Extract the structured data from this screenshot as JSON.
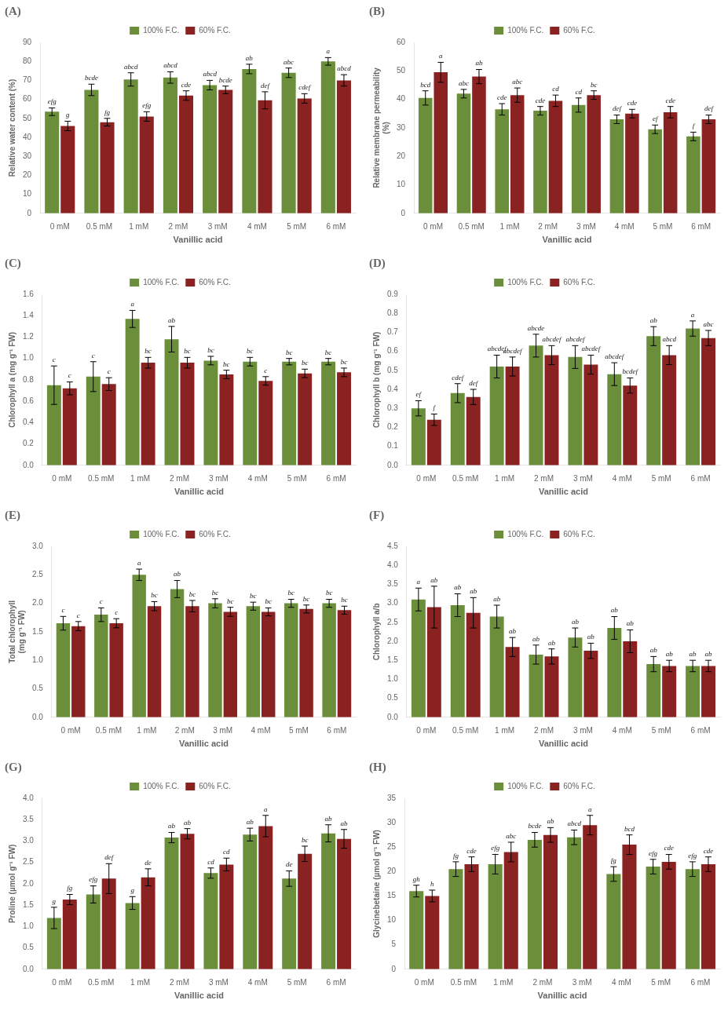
{
  "chart_data": [
    {
      "type": "bar",
      "title": "(A)",
      "xlabel": "Vanillic acid",
      "ylabel": "Relative water content (%)",
      "categories": [
        "0 mM",
        "0.5 mM",
        "1 mM",
        "2 mM",
        "3 mM",
        "4 mM",
        "5 mM",
        "6 mM"
      ],
      "ylim": [
        0,
        90
      ],
      "yticks": [
        0,
        10,
        20,
        30,
        40,
        50,
        60,
        70,
        80,
        90
      ],
      "grid": false,
      "legend": "top",
      "series": [
        {
          "name": "100% F.C.",
          "color": "#6b8e3a",
          "values": [
            53.5,
            65.0,
            70.5,
            71.5,
            67.5,
            76.0,
            74.0,
            80.0
          ],
          "errors": [
            2.0,
            3.0,
            3.5,
            3.0,
            2.5,
            2.5,
            2.5,
            2.0
          ],
          "annotations": [
            "efg",
            "bcde",
            "abcd",
            "abcd",
            "abcd",
            "ab",
            "abc",
            "a"
          ]
        },
        {
          "name": "60% F.C.",
          "color": "#8b2222",
          "values": [
            46.0,
            48.0,
            51.0,
            62.0,
            65.0,
            59.5,
            60.5,
            70.0
          ],
          "errors": [
            2.5,
            2.0,
            2.5,
            2.5,
            2.0,
            4.5,
            2.5,
            3.0
          ],
          "annotations": [
            "g",
            "fg",
            "efg",
            "cde",
            "bcde",
            "def",
            "cdef",
            "abcd"
          ]
        }
      ]
    },
    {
      "type": "bar",
      "title": "(B)",
      "xlabel": "Vanillic acid",
      "ylabel": "Relative membrane permeability\n(%)",
      "categories": [
        "0 mM",
        "0.5 mM",
        "1 mM",
        "2 mM",
        "3 mM",
        "4 mM",
        "5 mM",
        "6 mM"
      ],
      "ylim": [
        0,
        60
      ],
      "yticks": [
        0,
        10,
        20,
        30,
        40,
        50,
        60
      ],
      "grid": false,
      "legend": "top",
      "series": [
        {
          "name": "100% F.C.",
          "color": "#6b8e3a",
          "values": [
            40.5,
            42.0,
            36.5,
            36.0,
            38.0,
            33.0,
            29.5,
            27.0
          ],
          "errors": [
            2.5,
            1.5,
            2.0,
            1.5,
            2.5,
            1.5,
            1.5,
            1.5
          ],
          "annotations": [
            "bcd",
            "abc",
            "cde",
            "cde",
            "cd",
            "def",
            "ef",
            "f"
          ]
        },
        {
          "name": "60% F.C.",
          "color": "#8b2222",
          "values": [
            49.5,
            48.0,
            41.5,
            39.5,
            41.5,
            35.0,
            35.5,
            33.0
          ],
          "errors": [
            3.5,
            2.5,
            2.5,
            2.0,
            1.5,
            1.5,
            2.0,
            1.5
          ],
          "annotations": [
            "a",
            "ab",
            "abc",
            "cd",
            "bc",
            "cde",
            "cde",
            "def"
          ]
        }
      ]
    },
    {
      "type": "bar",
      "title": "(C)",
      "xlabel": "Vanillic acid",
      "ylabel": "Chlorophyll a (mg g⁻¹ FW)",
      "categories": [
        "0 mM",
        "0.5 mM",
        "1 mM",
        "2 mM",
        "3 mM",
        "4 mM",
        "5 mM",
        "6 mM"
      ],
      "ylim": [
        0,
        1.6
      ],
      "yticks": [
        {
          "value": 0,
          "label": "0.0"
        },
        0.2,
        0.4,
        0.6,
        0.8,
        {
          "value": 1.0,
          "label": "1.0"
        },
        1.2,
        1.4,
        1.6
      ],
      "grid": false,
      "legend": "top",
      "series": [
        {
          "name": "100% F.C.",
          "color": "#6b8e3a",
          "values": [
            0.75,
            0.83,
            1.37,
            1.18,
            0.98,
            0.97,
            0.97,
            0.97
          ],
          "errors": [
            0.18,
            0.14,
            0.08,
            0.12,
            0.04,
            0.04,
            0.03,
            0.03
          ],
          "annotations": [
            "c",
            "c",
            "a",
            "ab",
            "bc",
            "bc",
            "bc",
            "bc"
          ]
        },
        {
          "name": "60% F.C.",
          "color": "#8b2222",
          "values": [
            0.72,
            0.76,
            0.96,
            0.96,
            0.85,
            0.79,
            0.86,
            0.87
          ],
          "errors": [
            0.06,
            0.06,
            0.05,
            0.05,
            0.04,
            0.04,
            0.04,
            0.04
          ],
          "annotations": [
            "c",
            "c",
            "bc",
            "bc",
            "bc",
            "c",
            "bc",
            "bc"
          ]
        }
      ]
    },
    {
      "type": "bar",
      "title": "(D)",
      "xlabel": "Vanillic acid",
      "ylabel": "Chlorophyll b (mg g⁻¹ FW)",
      "categories": [
        "0 mM",
        "0.5 mM",
        "1 mM",
        "2 mM",
        "3 mM",
        "4 mM",
        "5 mM",
        "6 mM"
      ],
      "ylim": [
        0,
        0.9
      ],
      "yticks": [
        {
          "value": 0,
          "label": "0.0"
        },
        0.1,
        0.2,
        0.3,
        0.4,
        0.5,
        0.6,
        0.7,
        0.8,
        0.9
      ],
      "grid": false,
      "legend": "top",
      "series": [
        {
          "name": "100% F.C.",
          "color": "#6b8e3a",
          "values": [
            0.3,
            0.38,
            0.52,
            0.63,
            0.57,
            0.48,
            0.68,
            0.72
          ],
          "errors": [
            0.04,
            0.05,
            0.06,
            0.06,
            0.06,
            0.06,
            0.05,
            0.04
          ],
          "annotations": [
            "ef",
            "cdef",
            "abcdef",
            "abcde",
            "abcdef",
            "abcdef",
            "ab",
            "a"
          ]
        },
        {
          "name": "60% F.C.",
          "color": "#8b2222",
          "values": [
            0.24,
            0.36,
            0.52,
            0.58,
            0.53,
            0.42,
            0.58,
            0.67
          ],
          "errors": [
            0.03,
            0.04,
            0.05,
            0.05,
            0.05,
            0.04,
            0.05,
            0.04
          ],
          "annotations": [
            "f",
            "def",
            "abcdef",
            "abcdef",
            "abcdef",
            "bcdef",
            "abcd",
            "abc"
          ]
        }
      ]
    },
    {
      "type": "bar",
      "title": "(E)",
      "xlabel": "Vanillic acid",
      "ylabel": "Total chlorophyll\n(mg g⁻¹ FW)",
      "categories": [
        "0 mM",
        "0.5 mM",
        "1 mM",
        "2 mM",
        "3 mM",
        "4 mM",
        "5 mM",
        "6 mM"
      ],
      "ylim": [
        0,
        3
      ],
      "yticks": [
        {
          "value": 0,
          "label": "0.0"
        },
        0.5,
        {
          "value": 1.0,
          "label": "1.0"
        },
        1.5,
        {
          "value": 2.0,
          "label": "2.0"
        },
        2.5,
        {
          "value": 3.0,
          "label": "3.0"
        }
      ],
      "grid": false,
      "legend": "top",
      "series": [
        {
          "name": "100% F.C.",
          "color": "#6b8e3a",
          "values": [
            1.65,
            1.8,
            2.5,
            2.25,
            2.0,
            1.95,
            2.0,
            2.0
          ],
          "errors": [
            0.12,
            0.12,
            0.1,
            0.15,
            0.08,
            0.07,
            0.07,
            0.07
          ],
          "annotations": [
            "c",
            "c",
            "a",
            "ab",
            "bc",
            "bc",
            "bc",
            "bc"
          ]
        },
        {
          "name": "60% F.C.",
          "color": "#8b2222",
          "values": [
            1.6,
            1.65,
            1.95,
            1.95,
            1.85,
            1.85,
            1.9,
            1.88
          ],
          "errors": [
            0.08,
            0.08,
            0.08,
            0.1,
            0.08,
            0.07,
            0.07,
            0.07
          ],
          "annotations": [
            "c",
            "c",
            "bc",
            "bc",
            "bc",
            "bc",
            "bc",
            "bc"
          ]
        }
      ]
    },
    {
      "type": "bar",
      "title": "(F)",
      "xlabel": "Vanillic acid",
      "ylabel": "Chlorophyll a/b",
      "categories": [
        "0 mM",
        "0.5 mM",
        "1 mM",
        "2 mM",
        "3 mM",
        "4 mM",
        "5 mM",
        "6 mM"
      ],
      "ylim": [
        0,
        4.5
      ],
      "yticks": [
        {
          "value": 0,
          "label": "0.0"
        },
        0.5,
        {
          "value": 1.0,
          "label": "1.0"
        },
        1.5,
        {
          "value": 2.0,
          "label": "2.0"
        },
        2.5,
        {
          "value": 3.0,
          "label": "3.0"
        },
        3.5,
        {
          "value": 4.0,
          "label": "4.0"
        },
        4.5
      ],
      "grid": false,
      "legend": "top",
      "series": [
        {
          "name": "100% F.C.",
          "color": "#6b8e3a",
          "values": [
            3.1,
            2.95,
            2.65,
            1.65,
            2.1,
            2.35,
            1.4,
            1.35
          ],
          "errors": [
            0.3,
            0.3,
            0.3,
            0.25,
            0.25,
            0.3,
            0.2,
            0.15
          ],
          "annotations": [
            "a",
            "ab",
            "ab",
            "ab",
            "ab",
            "ab",
            "ab",
            "ab"
          ]
        },
        {
          "name": "60% F.C.",
          "color": "#8b2222",
          "values": [
            2.9,
            2.75,
            1.85,
            1.6,
            1.75,
            2.0,
            1.35,
            1.35
          ],
          "errors": [
            0.55,
            0.4,
            0.25,
            0.2,
            0.2,
            0.3,
            0.15,
            0.15
          ],
          "annotations": [
            "ab",
            "ab",
            "ab",
            "ab",
            "ab",
            "ab",
            "ab",
            "ab"
          ]
        }
      ]
    },
    {
      "type": "bar",
      "title": "(G)",
      "xlabel": "Vanillic acid",
      "ylabel": "Proline (µmol g⁻¹ FW)",
      "categories": [
        "0 mM",
        "0.5 mM",
        "1 mM",
        "2 mM",
        "3 mM",
        "4 mM",
        "5 mM",
        "6 mM"
      ],
      "ylim": [
        0,
        4
      ],
      "yticks": [
        {
          "value": 0,
          "label": "0.0"
        },
        0.5,
        {
          "value": 1.0,
          "label": "1.0"
        },
        1.5,
        {
          "value": 2.0,
          "label": "2.0"
        },
        2.5,
        {
          "value": 3.0,
          "label": "3.0"
        },
        3.5,
        {
          "value": 4.0,
          "label": "4.0"
        }
      ],
      "grid": false,
      "legend": "top",
      "series": [
        {
          "name": "100% F.C.",
          "color": "#6b8e3a",
          "values": [
            1.2,
            1.75,
            1.55,
            3.08,
            2.25,
            3.15,
            2.12,
            3.18
          ],
          "errors": [
            0.25,
            0.2,
            0.15,
            0.12,
            0.12,
            0.15,
            0.18,
            0.2
          ],
          "annotations": [
            "g",
            "efg",
            "g",
            "ab",
            "cd",
            "ab",
            "de",
            "ab"
          ]
        },
        {
          "name": "60% F.C.",
          "color": "#8b2222",
          "values": [
            1.63,
            2.12,
            2.15,
            3.17,
            2.45,
            3.35,
            2.7,
            3.05
          ],
          "errors": [
            0.12,
            0.35,
            0.2,
            0.12,
            0.15,
            0.25,
            0.18,
            0.22
          ],
          "annotations": [
            "fg",
            "def",
            "de",
            "ab",
            "cd",
            "a",
            "bc",
            "ab"
          ]
        }
      ]
    },
    {
      "type": "bar",
      "title": "(H)",
      "xlabel": "Vanillic acid",
      "ylabel": "Glycinebetaine (µmol g⁻¹ FW)",
      "categories": [
        "0 mM",
        "0.5 mM",
        "1 mM",
        "2 mM",
        "3 mM",
        "4 mM",
        "5 mM",
        "6 mM"
      ],
      "ylim": [
        0,
        35
      ],
      "yticks": [
        0,
        5,
        10,
        15,
        20,
        25,
        30,
        35
      ],
      "grid": false,
      "legend": "top",
      "series": [
        {
          "name": "100% F.C.",
          "color": "#6b8e3a",
          "values": [
            16.0,
            20.5,
            21.5,
            26.5,
            27.0,
            19.5,
            21.0,
            20.5
          ],
          "errors": [
            1.2,
            1.5,
            2.0,
            1.5,
            1.5,
            1.5,
            1.5,
            1.5
          ],
          "annotations": [
            "gh",
            "fg",
            "efg",
            "bcde",
            "abcd",
            "fg",
            "efg",
            "efg"
          ]
        },
        {
          "name": "60% F.C.",
          "color": "#8b2222",
          "values": [
            15.0,
            21.5,
            24.0,
            27.5,
            29.5,
            25.5,
            22.0,
            21.5
          ],
          "errors": [
            1.2,
            1.5,
            2.0,
            1.5,
            2.0,
            2.0,
            1.5,
            1.5
          ],
          "annotations": [
            "h",
            "cde",
            "abc",
            "ab",
            "a",
            "bcd",
            "cde",
            "cde"
          ]
        }
      ]
    }
  ]
}
